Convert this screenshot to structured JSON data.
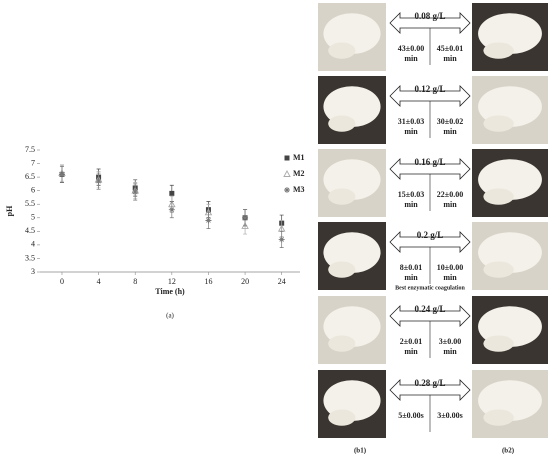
{
  "chart_data": {
    "type": "scatter",
    "y_label": "pH",
    "x_label": "Time (h)",
    "caption": "(a)",
    "x": [
      0,
      4,
      8,
      12,
      16,
      20,
      24
    ],
    "xlim": [
      -2.4,
      26
    ],
    "xticks": [
      0,
      4,
      8,
      12,
      16,
      20,
      24
    ],
    "ylim": [
      3,
      7.5
    ],
    "yticks": [
      3,
      3.5,
      4,
      4.5,
      5,
      5.5,
      6,
      6.5,
      7,
      7.5
    ],
    "series": [
      {
        "name": "M1",
        "color": "#444444",
        "marker": "square",
        "values": [
          6.6,
          6.5,
          6.1,
          5.9,
          5.3,
          5.0,
          4.8
        ],
        "errors": [
          0.3,
          0.3,
          0.3,
          0.3,
          0.3,
          0.3,
          0.3
        ]
      },
      {
        "name": "M2",
        "color": "#aaaaaa",
        "marker": "triangle",
        "values": [
          6.65,
          6.4,
          6.0,
          5.5,
          5.2,
          4.7,
          4.6
        ],
        "errors": [
          0.3,
          0.3,
          0.3,
          0.3,
          0.3,
          0.3,
          0.3
        ]
      },
      {
        "name": "M3",
        "color": "#777777",
        "marker": "star",
        "values": [
          6.6,
          6.35,
          5.95,
          5.3,
          4.9,
          5.0,
          4.2
        ],
        "errors": [
          0.3,
          0.3,
          0.3,
          0.3,
          0.3,
          0.3,
          0.3
        ]
      }
    ]
  },
  "panels": {
    "caption_left": "(b1)",
    "caption_right": "(b2)",
    "rows": [
      {
        "concentration": "0.08 g/L",
        "left": "43±0.00",
        "left_unit": "min",
        "right": "45±0.01",
        "right_unit": "min"
      },
      {
        "concentration": "0.12 g/L",
        "left": "31±0.03",
        "left_unit": "min",
        "right": "30±0.02",
        "right_unit": "min"
      },
      {
        "concentration": "0.16 g/L",
        "left": "15±0.03",
        "left_unit": "min",
        "right": "22±0.00",
        "right_unit": "min"
      },
      {
        "concentration": "0.2 g/L",
        "left": "8±0.01",
        "left_unit": "min",
        "right": "10±0.00",
        "right_unit": "min",
        "note": "Best enzymatic coagulation"
      },
      {
        "concentration": "0.24 g/L",
        "left": "2±0.01",
        "left_unit": "min",
        "right": "3±0.00",
        "right_unit": "min"
      },
      {
        "concentration": "0.28 g/L",
        "left": "5±0.00s",
        "right": "3±0.00s"
      }
    ]
  }
}
